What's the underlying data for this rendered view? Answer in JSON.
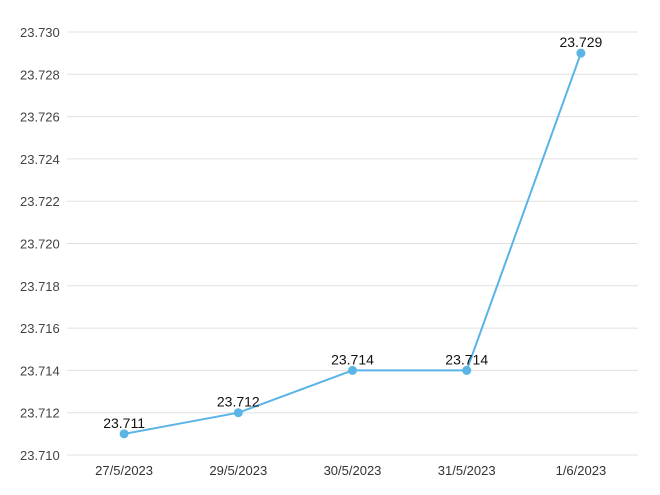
{
  "chart_data": {
    "type": "line",
    "categories": [
      "27/5/2023",
      "29/5/2023",
      "30/5/2023",
      "31/5/2023",
      "1/6/2023"
    ],
    "series": [
      {
        "values": [
          23.711,
          23.712,
          23.714,
          23.714,
          23.729
        ],
        "data_labels": [
          "23.711",
          "23.712",
          "23.714",
          "23.714",
          "23.729"
        ]
      }
    ],
    "yticks": [
      "23.710",
      "23.712",
      "23.714",
      "23.716",
      "23.718",
      "23.720",
      "23.722",
      "23.724",
      "23.726",
      "23.728",
      "23.730"
    ],
    "ylim": [
      23.71,
      23.73
    ],
    "grid": true,
    "colors": {
      "series": "#5ab4e6",
      "grid": "#e0e0e0"
    }
  }
}
